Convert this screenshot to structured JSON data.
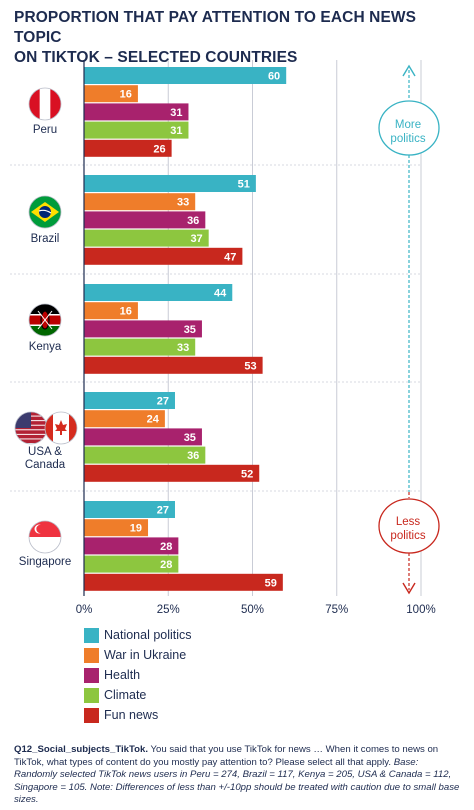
{
  "title_lines": [
    "PROPORTION THAT PAY ATTENTION TO EACH NEWS TOPIC",
    "ON TIKTOK – SELECTED COUNTRIES"
  ],
  "colors": {
    "National politics": "#39b3c4",
    "War in Ukraine": "#ef7d2a",
    "Health": "#a8226d",
    "Climate": "#8dc63f",
    "Fun news": "#c8281e",
    "more_politics": "#39b3c4",
    "less_politics": "#c8281e"
  },
  "chart_data": {
    "type": "bar",
    "orientation": "horizontal",
    "title": "PROPORTION THAT PAY ATTENTION TO EACH NEWS TOPIC ON TIKTOK – SELECTED COUNTRIES",
    "categories": [
      "Peru",
      "Brazil",
      "Kenya",
      "USA & Canada",
      "Singapore"
    ],
    "series": [
      {
        "name": "National politics",
        "values": [
          60,
          51,
          44,
          27,
          27
        ]
      },
      {
        "name": "War in Ukraine",
        "values": [
          16,
          33,
          16,
          24,
          19
        ]
      },
      {
        "name": "Health",
        "values": [
          31,
          36,
          35,
          35,
          28
        ]
      },
      {
        "name": "Climate",
        "values": [
          31,
          37,
          33,
          36,
          28
        ]
      },
      {
        "name": "Fun news",
        "values": [
          26,
          47,
          53,
          52,
          59
        ]
      }
    ],
    "xlim": [
      0,
      100
    ],
    "x_ticks": [
      "0%",
      "25%",
      "50%",
      "75%",
      "100%"
    ],
    "grid": true,
    "legend_position": "bottom-left"
  },
  "countries": [
    {
      "label_lines": [
        "Peru"
      ],
      "flags": [
        "peru-flag"
      ]
    },
    {
      "label_lines": [
        "Brazil"
      ],
      "flags": [
        "brazil-flag"
      ]
    },
    {
      "label_lines": [
        "Kenya"
      ],
      "flags": [
        "kenya-flag"
      ]
    },
    {
      "label_lines": [
        "USA &",
        "Canada"
      ],
      "flags": [
        "usa-flag",
        "canada-flag"
      ]
    },
    {
      "label_lines": [
        "Singapore"
      ],
      "flags": [
        "singapore-flag"
      ]
    }
  ],
  "annotations": {
    "more_politics": [
      "More",
      "politics"
    ],
    "less_politics": [
      "Less",
      "politics"
    ]
  },
  "notes": {
    "question_id": "Q12_Social_subjects_TikTok.",
    "question_text": "You said that you use TikTok for news … When it comes to news on TikTok, what types of content do you mostly pay attention to? Please select all that apply.",
    "base": "Base: Randomly selected TikTok news users in Peru = 274, Brazil = 117, Kenya = 205, USA & Canada = 112, Singapore = 105. Note: Differences of less than +/-10pp should be treated with caution due to small base sizes."
  }
}
